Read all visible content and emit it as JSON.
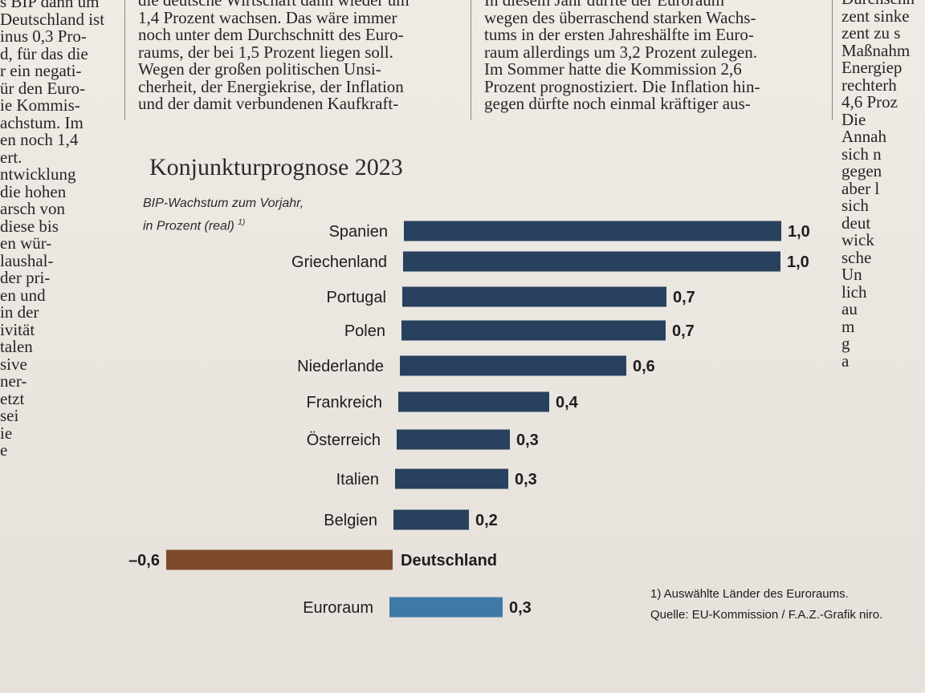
{
  "article": {
    "left_column": [
      "s BIP dann um",
      "Deutschland ist",
      "inus 0,3 Pro-",
      "d, für das die",
      "r ein negati-",
      "ür den Euro-",
      "ie Kommis-",
      "achstum. Im",
      "en noch 1,4",
      "ert.",
      "ntwicklung",
      "die hohen",
      "arsch von",
      "diese bis",
      "en wür-",
      "laushal-",
      "der pri-",
      "en und",
      "in der",
      "ivität",
      "talen",
      "sive",
      "ner-",
      "etzt",
      "sei",
      "ie",
      "e"
    ],
    "middle_column": [
      "die deutsche Wirtschaft dann wieder um",
      "1,4 Prozent wachsen. Das wäre immer",
      "noch unter dem Durchschnitt des Euro-",
      "raums, der bei 1,5 Prozent liegen soll.",
      "Wegen der großen politischen Unsi-",
      "cherheit, der Energiekrise, der Inflation",
      "und der damit verbundenen Kaufkraft-"
    ],
    "right_column": [
      "In diesem Jahr dürfte der Euroraum",
      "wegen des überraschend starken Wachs-",
      "tums in der ersten Jahreshälfte im Euro-",
      "raum allerdings um 3,2 Prozent zulegen.",
      "Im Sommer hatte die Kommission 2,6",
      "Prozent prognostiziert. Die Inflation hin-",
      "gegen dürfte noch einmal kräftiger aus-"
    ],
    "far_right_column": [
      "Durchschn",
      "zent sinke",
      "zent zu s",
      "Maßnahm",
      "Energiep",
      "rechterh",
      "4,6 Proz",
      "Die",
      "Annah",
      "sich n",
      "gegen",
      "aber l",
      "sich",
      "deut",
      "wick",
      "sche",
      "Un",
      "lich",
      "au",
      "m",
      "g",
      "a"
    ]
  },
  "chart_data": {
    "type": "bar",
    "orientation": "horizontal",
    "title": "Konjunkturprognose 2023",
    "subtitle_line1": "BIP-Wachstum zum Vorjahr,",
    "subtitle_line2": "in Prozent (real)",
    "subtitle_footnote_mark": "1)",
    "categories": [
      "Spanien",
      "Griechenland",
      "Portugal",
      "Polen",
      "Niederlande",
      "Frankreich",
      "Österreich",
      "Italien",
      "Belgien",
      "Deutschland",
      "Euroraum"
    ],
    "values": [
      1.0,
      1.0,
      0.7,
      0.7,
      0.6,
      0.4,
      0.3,
      0.3,
      0.2,
      -0.6,
      0.3
    ],
    "value_labels": [
      "1,0",
      "1,0",
      "0,7",
      "0,7",
      "0,6",
      "0,4",
      "0,3",
      "0,3",
      "0,2",
      "–0,6",
      "0,3"
    ],
    "highlight": [
      "Deutschland",
      "Euroraum"
    ],
    "colors": {
      "default": "#27415e",
      "negative": "#7e4a2c",
      "aggregate": "#3f7aa6"
    },
    "footnote": "1) Auswählte Länder des Euroraums.",
    "source": "Quelle: EU-Kommission / F.A.Z.-Grafik niro."
  }
}
